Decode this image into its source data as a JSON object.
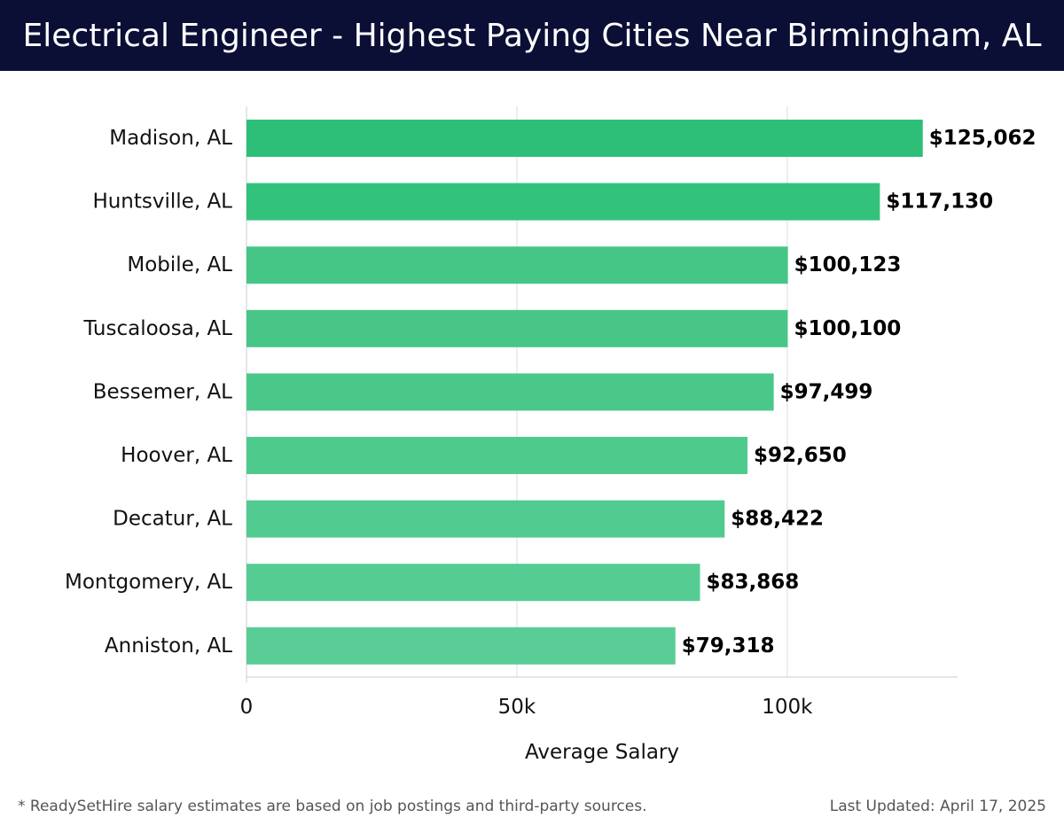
{
  "header": {
    "title": "Electrical Engineer - Highest Paying Cities Near Birmingham, AL"
  },
  "chart_data": {
    "type": "bar",
    "orientation": "horizontal",
    "title": "Electrical Engineer - Highest Paying Cities Near Birmingham, AL",
    "xlabel": "Average Salary",
    "ylabel": "",
    "xlim": [
      0,
      131500
    ],
    "x_ticks": [
      0,
      50000,
      100000
    ],
    "x_tick_labels": [
      "0",
      "50k",
      "100k"
    ],
    "grid": true,
    "categories": [
      "Madison, AL",
      "Huntsville, AL",
      "Mobile, AL",
      "Tuscaloosa, AL",
      "Bessemer, AL",
      "Hoover, AL",
      "Decatur, AL",
      "Montgomery, AL",
      "Anniston, AL"
    ],
    "values": [
      125062,
      117130,
      100123,
      100100,
      97499,
      92650,
      88422,
      83868,
      79318
    ],
    "value_labels": [
      "$125,062",
      "$117,130",
      "$100,123",
      "$100,100",
      "$97,499",
      "$92,650",
      "$88,422",
      "$83,868",
      "$79,318"
    ],
    "bar_colors": [
      "#2dbf78",
      "#33c27c",
      "#45c687",
      "#47c688",
      "#4ac88a",
      "#4fca8d",
      "#51ca8f",
      "#55cc92",
      "#59cd95"
    ]
  },
  "footer": {
    "note": "* ReadySetHire salary estimates are based on job postings and third-party sources.",
    "updated": "Last Updated: April 17, 2025"
  }
}
